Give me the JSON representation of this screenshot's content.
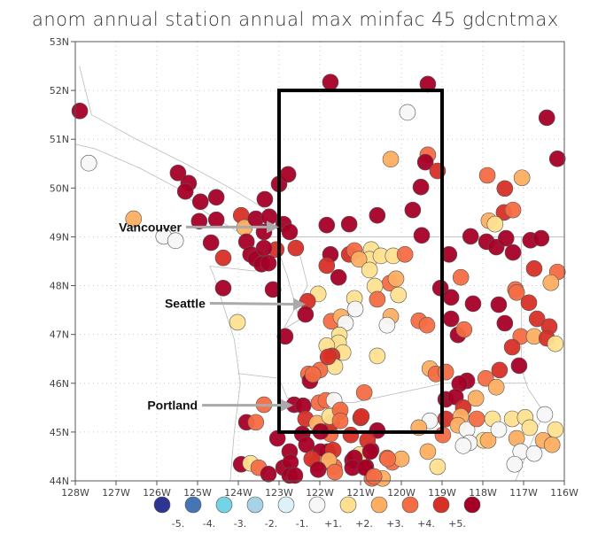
{
  "title": "anom annual station annual max minfac 45 gdcntmax",
  "map": {
    "lon_range": [
      -128,
      -116
    ],
    "lat_range": [
      44,
      53
    ],
    "grid": true,
    "x_ticks": [
      "128W",
      "127W",
      "126W",
      "125W",
      "124W",
      "123W",
      "122W",
      "121W",
      "120W",
      "119W",
      "118W",
      "117W",
      "116W"
    ],
    "y_ticks": [
      "44N",
      "45N",
      "46N",
      "47N",
      "48N",
      "49N",
      "50N",
      "51N",
      "52N",
      "53N"
    ],
    "box": {
      "lon": [
        -123,
        -119
      ],
      "lat": [
        45,
        52
      ]
    },
    "annotations": [
      {
        "label": "Vancouver",
        "lon": -123.0,
        "lat": 49.2
      },
      {
        "label": "Seattle",
        "lon": -122.35,
        "lat": 47.62
      },
      {
        "label": "Portland",
        "lon": -122.65,
        "lat": 45.55
      }
    ]
  },
  "legend": {
    "colors": [
      "#2d3593",
      "#4575b4",
      "#74d4e6",
      "#a6d4e6",
      "#ddf1f8",
      "#f7f7f7",
      "#fee090",
      "#fdae61",
      "#f46d43",
      "#d73027",
      "#a50026"
    ],
    "labels": [
      "-5.",
      "-4.",
      "-3.",
      "-2.",
      "-1.",
      "+1.",
      "+2.",
      "+3.",
      "+4.",
      "+5."
    ]
  },
  "stations": [
    [
      -127.89,
      51.58,
      10
    ],
    [
      -127.67,
      50.51,
      5
    ],
    [
      -126.57,
      49.37,
      7
    ],
    [
      -125.83,
      49.01,
      5
    ],
    [
      -125.54,
      48.92,
      5
    ],
    [
      -125.48,
      50.31,
      10
    ],
    [
      -125.22,
      50.1,
      10
    ],
    [
      -125.3,
      49.93,
      10
    ],
    [
      -124.93,
      49.72,
      10
    ],
    [
      -124.54,
      49.81,
      10
    ],
    [
      -124.96,
      49.32,
      10
    ],
    [
      -124.54,
      49.35,
      10
    ],
    [
      -123.93,
      49.44,
      9
    ],
    [
      -123.85,
      49.19,
      7
    ],
    [
      -123.57,
      49.37,
      10
    ],
    [
      -123.24,
      49.41,
      10
    ],
    [
      -123.35,
      49.77,
      10
    ],
    [
      -123.0,
      50.08,
      10
    ],
    [
      -122.78,
      50.28,
      10
    ],
    [
      -123.37,
      49.1,
      10
    ],
    [
      -122.89,
      49.26,
      10
    ],
    [
      -122.74,
      49.1,
      10
    ],
    [
      -123.07,
      48.74,
      9
    ],
    [
      -122.59,
      48.77,
      9
    ],
    [
      -123.8,
      48.9,
      10
    ],
    [
      -123.7,
      48.64,
      10
    ],
    [
      -123.57,
      48.55,
      10
    ],
    [
      -123.37,
      48.77,
      10
    ],
    [
      -123.43,
      48.44,
      10
    ],
    [
      -123.26,
      48.46,
      10
    ],
    [
      -124.67,
      48.88,
      10
    ],
    [
      -124.37,
      48.57,
      9
    ],
    [
      -124.37,
      47.95,
      10
    ],
    [
      -123.15,
      47.92,
      10
    ],
    [
      -121.74,
      52.17,
      10
    ],
    [
      -119.35,
      52.13,
      10
    ],
    [
      -119.85,
      51.55,
      5
    ],
    [
      -116.43,
      51.44,
      10
    ],
    [
      -116.17,
      50.6,
      10
    ],
    [
      -120.26,
      50.59,
      7
    ],
    [
      -119.35,
      50.68,
      8
    ],
    [
      -119.41,
      50.53,
      10
    ],
    [
      -119.11,
      50.35,
      9
    ],
    [
      -119.52,
      50.02,
      10
    ],
    [
      -119.72,
      49.55,
      10
    ],
    [
      -120.59,
      49.44,
      10
    ],
    [
      -121.83,
      49.24,
      10
    ],
    [
      -121.28,
      49.26,
      10
    ],
    [
      -119.5,
      49.03,
      10
    ],
    [
      -117.89,
      50.26,
      8
    ],
    [
      -117.04,
      50.21,
      7
    ],
    [
      -117.46,
      49.99,
      9
    ],
    [
      -117.48,
      49.5,
      9
    ],
    [
      -117.26,
      49.55,
      8
    ],
    [
      -117.85,
      49.33,
      7
    ],
    [
      -117.7,
      49.26,
      6
    ],
    [
      -118.3,
      49.01,
      10
    ],
    [
      -117.91,
      48.9,
      10
    ],
    [
      -117.67,
      48.79,
      10
    ],
    [
      -117.43,
      48.97,
      10
    ],
    [
      -117.26,
      48.68,
      10
    ],
    [
      -116.83,
      48.93,
      10
    ],
    [
      -116.57,
      48.97,
      10
    ],
    [
      -118.83,
      48.64,
      10
    ],
    [
      -118.54,
      48.17,
      8
    ],
    [
      -116.74,
      48.35,
      9
    ],
    [
      -116.17,
      48.28,
      8
    ],
    [
      -116.33,
      48.06,
      7
    ],
    [
      -117.2,
      47.92,
      8
    ],
    [
      -119.04,
      47.95,
      10
    ],
    [
      -121.74,
      48.64,
      10
    ],
    [
      -121.28,
      48.64,
      9
    ],
    [
      -121.15,
      48.72,
      8
    ],
    [
      -121.83,
      48.41,
      9
    ],
    [
      -121.54,
      48.17,
      10
    ],
    [
      -120.74,
      48.74,
      6
    ],
    [
      -120.78,
      48.54,
      6
    ],
    [
      -120.5,
      48.61,
      6
    ],
    [
      -120.2,
      48.61,
      6
    ],
    [
      -119.91,
      48.64,
      8
    ],
    [
      -121.04,
      48.54,
      7
    ],
    [
      -120.78,
      48.32,
      6
    ],
    [
      -120.28,
      48.05,
      8
    ],
    [
      -120.13,
      48.14,
      7
    ],
    [
      -120.65,
      47.99,
      6
    ],
    [
      -120.07,
      47.81,
      6
    ],
    [
      -120.59,
      47.72,
      8
    ],
    [
      -121.15,
      47.74,
      6
    ],
    [
      -121.13,
      47.52,
      5
    ],
    [
      -122.04,
      47.83,
      6
    ],
    [
      -122.3,
      47.68,
      9
    ],
    [
      -122.35,
      47.41,
      10
    ],
    [
      -120.26,
      47.37,
      7
    ],
    [
      -120.35,
      47.19,
      5
    ],
    [
      -121.72,
      47.27,
      8
    ],
    [
      -121.48,
      47.36,
      7
    ],
    [
      -121.37,
      47.23,
      5
    ],
    [
      -121.52,
      46.99,
      6
    ],
    [
      -121.54,
      46.83,
      6
    ],
    [
      -121.83,
      46.77,
      6
    ],
    [
      -121.43,
      46.63,
      6
    ],
    [
      -121.7,
      46.56,
      9
    ],
    [
      -120.59,
      46.56,
      6
    ],
    [
      -119.57,
      47.28,
      8
    ],
    [
      -119.37,
      47.19,
      8
    ],
    [
      -122.85,
      46.96,
      10
    ],
    [
      -118.78,
      47.76,
      10
    ],
    [
      -118.24,
      47.63,
      10
    ],
    [
      -117.61,
      47.61,
      10
    ],
    [
      -117.17,
      47.86,
      8
    ],
    [
      -116.87,
      47.65,
      9
    ],
    [
      -118.78,
      47.32,
      10
    ],
    [
      -118.61,
      46.99,
      10
    ],
    [
      -118.46,
      47.1,
      8
    ],
    [
      -117.46,
      47.23,
      10
    ],
    [
      -116.67,
      47.32,
      9
    ],
    [
      -116.37,
      47.16,
      9
    ],
    [
      -117.07,
      46.96,
      8
    ],
    [
      -116.74,
      46.96,
      7
    ],
    [
      -116.43,
      46.92,
      9
    ],
    [
      -116.22,
      46.81,
      6
    ],
    [
      -117.28,
      46.74,
      9
    ],
    [
      -117.11,
      46.36,
      10
    ],
    [
      -117.59,
      46.27,
      9
    ],
    [
      -117.93,
      46.1,
      8
    ],
    [
      -117.67,
      45.92,
      7
    ],
    [
      -118.39,
      46.05,
      10
    ],
    [
      -118.57,
      45.99,
      10
    ],
    [
      -124.02,
      47.25,
      6
    ],
    [
      -121.63,
      46.34,
      6
    ],
    [
      -122.28,
      46.19,
      8
    ],
    [
      -122.0,
      46.27,
      8
    ],
    [
      -122.24,
      46.05,
      10
    ],
    [
      -119.3,
      46.3,
      7
    ],
    [
      -119.15,
      46.19,
      8
    ],
    [
      -118.91,
      46.23,
      8
    ],
    [
      -120.91,
      45.81,
      8
    ],
    [
      -118.91,
      45.67,
      10
    ],
    [
      -118.67,
      45.72,
      10
    ],
    [
      -118.48,
      45.5,
      9
    ],
    [
      -118.17,
      45.69,
      7
    ],
    [
      -118.91,
      45.27,
      9
    ],
    [
      -118.54,
      45.32,
      7
    ],
    [
      -118.61,
      45.14,
      7
    ],
    [
      -118.39,
      45.05,
      5
    ],
    [
      -118.15,
      45.27,
      8
    ],
    [
      -117.76,
      45.27,
      6
    ],
    [
      -117.98,
      44.83,
      6
    ],
    [
      -117.87,
      44.83,
      7
    ],
    [
      -118.33,
      44.78,
      5
    ],
    [
      -118.48,
      44.72,
      5
    ],
    [
      -117.61,
      45.05,
      5
    ],
    [
      -117.28,
      45.27,
      6
    ],
    [
      -116.96,
      45.3,
      6
    ],
    [
      -116.85,
      45.09,
      6
    ],
    [
      -116.48,
      45.36,
      5
    ],
    [
      -117.17,
      44.87,
      7
    ],
    [
      -117.07,
      44.6,
      5
    ],
    [
      -116.74,
      44.56,
      5
    ],
    [
      -117.22,
      44.34,
      5
    ],
    [
      -116.52,
      44.83,
      7
    ],
    [
      -116.3,
      44.74,
      7
    ],
    [
      -116.22,
      45.05,
      6
    ],
    [
      -119.3,
      45.23,
      5
    ],
    [
      -119.57,
      45.09,
      7
    ],
    [
      -118.98,
      44.94,
      8
    ],
    [
      -119.35,
      44.6,
      7
    ],
    [
      -119.11,
      44.29,
      6
    ],
    [
      -121.0,
      45.29,
      9
    ],
    [
      -120.59,
      45.03,
      10
    ],
    [
      -120.74,
      44.63,
      10
    ],
    [
      -121.2,
      44.42,
      10
    ],
    [
      -120.87,
      44.29,
      10
    ],
    [
      -121.02,
      44.54,
      6
    ],
    [
      -120.35,
      44.47,
      8
    ],
    [
      -120.22,
      44.38,
      8
    ],
    [
      -120.0,
      44.45,
      7
    ],
    [
      -120.72,
      44.05,
      8
    ],
    [
      -120.46,
      44.05,
      7
    ],
    [
      -121.8,
      44.6,
      10
    ],
    [
      -121.65,
      44.29,
      8
    ],
    [
      -121.74,
      44.96,
      8
    ],
    [
      -121.52,
      45.41,
      8
    ],
    [
      -121.7,
      45.2,
      9
    ],
    [
      -123.37,
      45.56,
      8
    ],
    [
      -122.63,
      45.56,
      10
    ],
    [
      -122.41,
      45.54,
      10
    ],
    [
      -122.02,
      45.6,
      8
    ],
    [
      -121.85,
      45.65,
      8
    ],
    [
      -121.65,
      45.65,
      5
    ],
    [
      -122.35,
      45.27,
      9
    ],
    [
      -122.07,
      45.18,
      7
    ],
    [
      -121.76,
      45.32,
      6
    ],
    [
      -121.5,
      45.45,
      8
    ],
    [
      -121.5,
      45.23,
      8
    ],
    [
      -120.98,
      45.32,
      9
    ],
    [
      -123.8,
      45.2,
      10
    ],
    [
      -123.57,
      45.2,
      8
    ],
    [
      -123.04,
      44.87,
      10
    ],
    [
      -122.43,
      44.96,
      10
    ],
    [
      -121.98,
      45.01,
      10
    ],
    [
      -121.24,
      44.94,
      9
    ],
    [
      -120.83,
      44.83,
      9
    ],
    [
      -122.74,
      44.6,
      10
    ],
    [
      -122.33,
      44.74,
      10
    ],
    [
      -121.98,
      44.6,
      10
    ],
    [
      -121.67,
      44.63,
      9
    ],
    [
      -121.15,
      44.47,
      10
    ],
    [
      -120.76,
      44.6,
      10
    ],
    [
      -120.33,
      44.45,
      8
    ],
    [
      -122.07,
      44.36,
      8
    ],
    [
      -121.78,
      44.42,
      7
    ],
    [
      -122.2,
      44.45,
      9
    ],
    [
      -123.93,
      44.34,
      10
    ],
    [
      -123.7,
      44.36,
      6
    ],
    [
      -123.5,
      44.27,
      8
    ],
    [
      -123.26,
      44.14,
      10
    ],
    [
      -122.89,
      44.27,
      10
    ],
    [
      -122.72,
      44.38,
      10
    ],
    [
      -122.74,
      44.11,
      10
    ],
    [
      -122.61,
      44.11,
      10
    ],
    [
      -122.04,
      44.23,
      10
    ],
    [
      -121.63,
      44.18,
      8
    ],
    [
      -121.2,
      44.27,
      10
    ],
    [
      -120.89,
      44.27,
      10
    ],
    [
      -120.67,
      44.09,
      8
    ],
    [
      -121.8,
      46.54,
      9
    ],
    [
      -122.17,
      46.18,
      8
    ]
  ]
}
